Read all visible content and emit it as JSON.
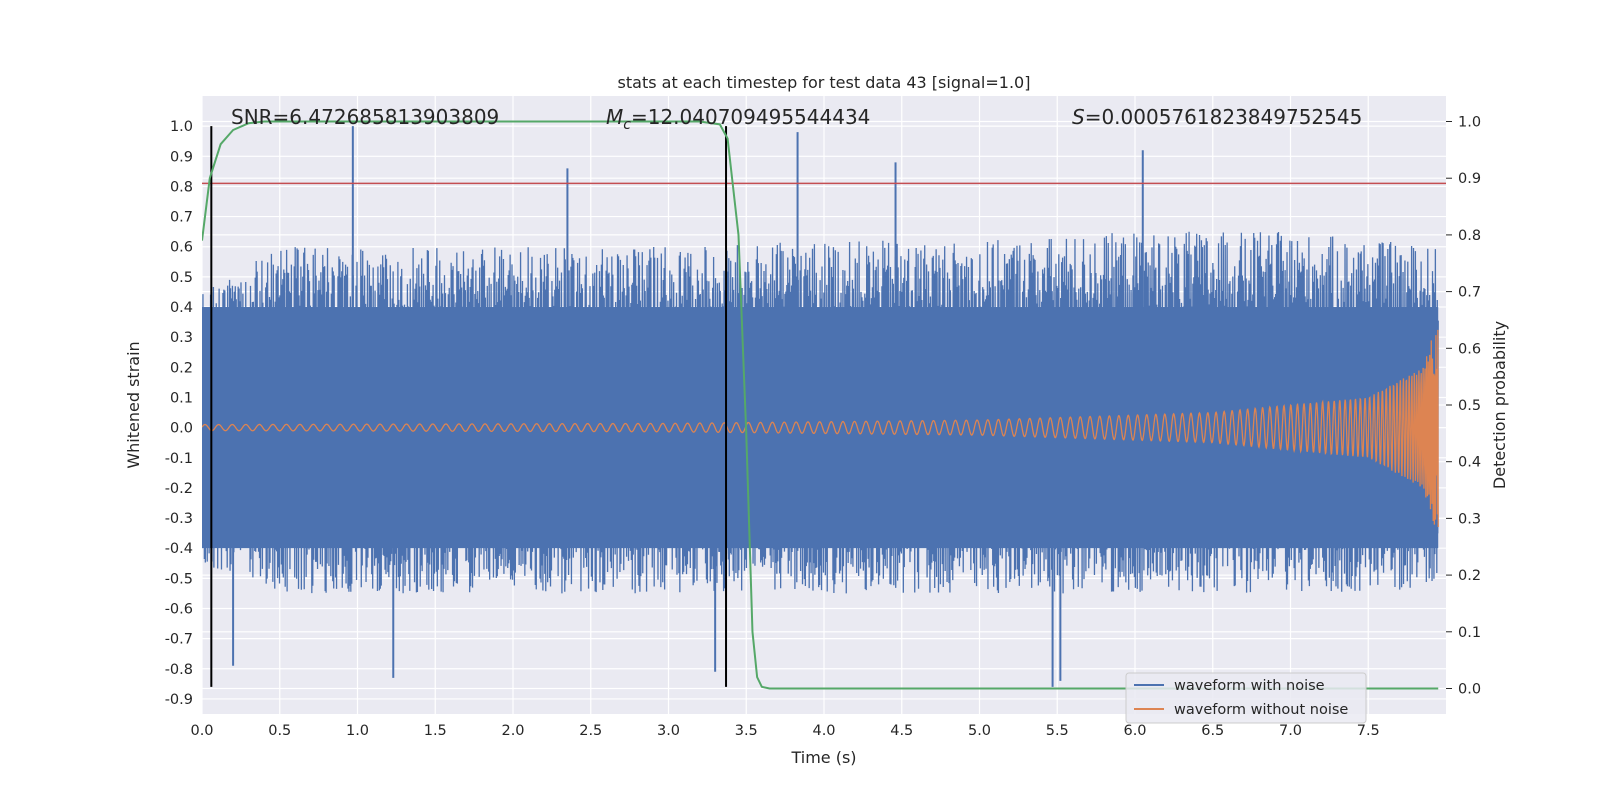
{
  "chart_data": {
    "type": "line",
    "title": "stats at each timestep for test data 43 [signal=1.0]",
    "xlabel": "Time (s)",
    "ylabel": "Whitened strain",
    "y2label": "Detection probability",
    "xlim": [
      0.0,
      8.0
    ],
    "ylim": [
      -0.95,
      1.1
    ],
    "y2lim": [
      -0.045,
      1.045
    ],
    "x_ticks": [
      "0.0",
      "0.5",
      "1.0",
      "1.5",
      "2.0",
      "2.5",
      "3.0",
      "3.5",
      "4.0",
      "4.5",
      "5.0",
      "5.5",
      "6.0",
      "6.5",
      "7.0",
      "7.5"
    ],
    "y_ticks": [
      "1.0",
      "0.9",
      "0.8",
      "0.7",
      "0.6",
      "0.5",
      "0.4",
      "0.3",
      "0.2",
      "0.1",
      "0.0",
      "-0.1",
      "-0.2",
      "-0.3",
      "-0.4",
      "-0.5",
      "-0.6",
      "-0.7",
      "-0.8",
      "-0.9"
    ],
    "y2_ticks": [
      "1.0",
      "0.9",
      "0.8",
      "0.7",
      "0.6",
      "0.5",
      "0.4",
      "0.3",
      "0.2",
      "0.1",
      "0.0"
    ],
    "grid": true,
    "legend_position": "lower-right",
    "annotations": {
      "snr": "SNR=6.472685813903809",
      "mc_symbol": "M",
      "mc_sub": "c",
      "mc_value": "=12.040709495544434",
      "s_symbol": "S",
      "s_value": "=0.0005761823849752545"
    },
    "series": [
      {
        "name": "waveform with noise",
        "color": "#4c72b0",
        "description": "noisy whitened strain, dense about 0 with spikes",
        "envelope_upper": [
          [
            0.0,
            0.45
          ],
          [
            0.5,
            0.6
          ],
          [
            1.0,
            0.6
          ],
          [
            2.0,
            0.6
          ],
          [
            3.0,
            0.6
          ],
          [
            4.0,
            0.62
          ],
          [
            5.0,
            0.62
          ],
          [
            6.0,
            0.65
          ],
          [
            7.0,
            0.65
          ],
          [
            7.95,
            0.6
          ]
        ],
        "envelope_lower": [
          [
            0.0,
            -0.45
          ],
          [
            0.5,
            -0.55
          ],
          [
            1.0,
            -0.55
          ],
          [
            2.0,
            -0.55
          ],
          [
            3.0,
            -0.55
          ],
          [
            4.0,
            -0.55
          ],
          [
            5.0,
            -0.55
          ],
          [
            6.0,
            -0.55
          ],
          [
            7.0,
            -0.55
          ],
          [
            7.95,
            -0.55
          ]
        ],
        "peaks": [
          [
            0.97,
            1.0
          ],
          [
            2.35,
            0.86
          ],
          [
            3.83,
            0.98
          ],
          [
            4.46,
            0.88
          ],
          [
            6.05,
            0.92
          ],
          [
            5.47,
            -0.86
          ],
          [
            5.52,
            -0.84
          ],
          [
            1.23,
            -0.83
          ],
          [
            3.3,
            -0.81
          ],
          [
            0.2,
            -0.79
          ]
        ]
      },
      {
        "name": "waveform without noise",
        "color": "#dd8452",
        "description": "chirp signal, growing amplitude and frequency",
        "amplitude": [
          [
            0.0,
            0.01
          ],
          [
            3.0,
            0.014
          ],
          [
            5.0,
            0.025
          ],
          [
            6.5,
            0.05
          ],
          [
            7.5,
            0.1
          ],
          [
            7.85,
            0.2
          ],
          [
            7.93,
            0.33
          ]
        ]
      },
      {
        "name": "detection probability",
        "color": "#55a868",
        "axis": "right",
        "points": [
          [
            0.0,
            0.79
          ],
          [
            0.05,
            0.9
          ],
          [
            0.12,
            0.96
          ],
          [
            0.2,
            0.985
          ],
          [
            0.3,
            0.997
          ],
          [
            0.4,
            1.0
          ],
          [
            3.2,
            1.0
          ],
          [
            3.33,
            0.995
          ],
          [
            3.38,
            0.97
          ],
          [
            3.45,
            0.8
          ],
          [
            3.5,
            0.45
          ],
          [
            3.54,
            0.1
          ],
          [
            3.57,
            0.02
          ],
          [
            3.6,
            0.003
          ],
          [
            3.65,
            0.0
          ],
          [
            7.95,
            0.0
          ]
        ]
      }
    ],
    "reference_lines": {
      "horizontal_red": {
        "y": 0.81,
        "color": "#c44e52"
      },
      "vertical_black": [
        {
          "x": 0.06,
          "y_range": [
            -0.86,
            1.0
          ]
        },
        {
          "x": 3.37,
          "y_range": [
            -0.86,
            1.0
          ]
        }
      ]
    }
  },
  "colors": {
    "plot_background": "#eaeaf2",
    "grid": "#ffffff"
  }
}
